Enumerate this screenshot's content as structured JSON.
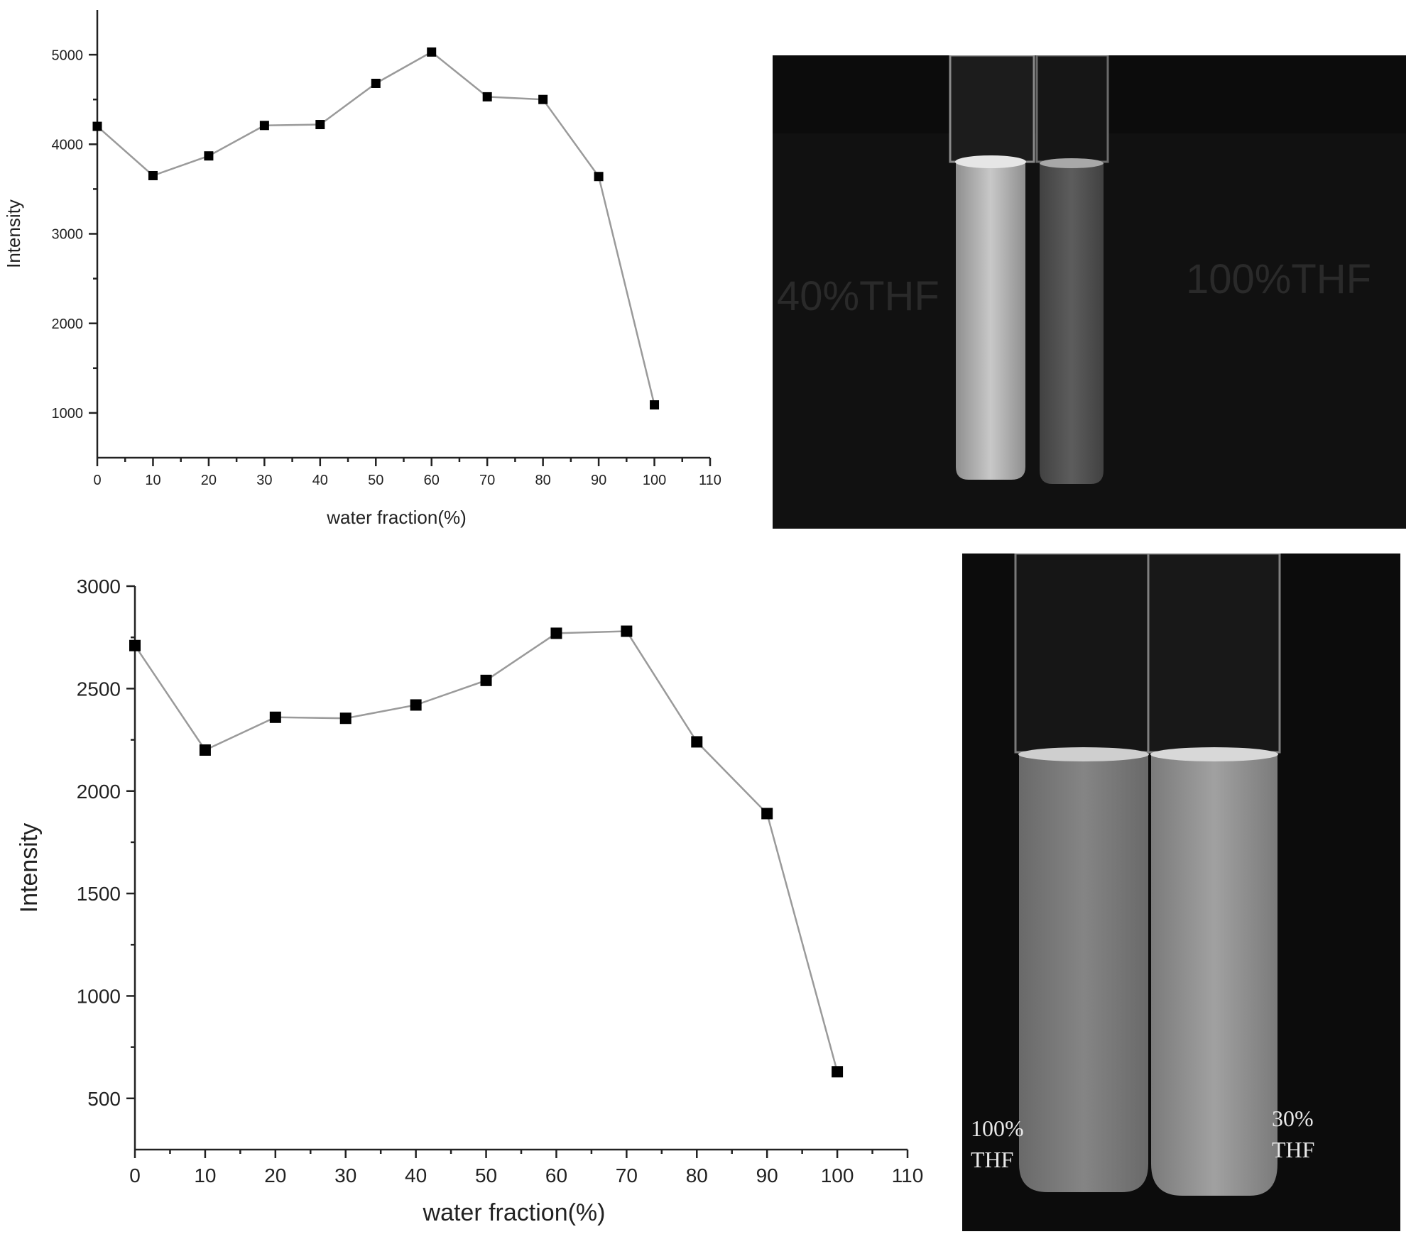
{
  "chart_data": [
    {
      "type": "line",
      "xlabel": "water fraction(%)",
      "ylabel": "Intensity",
      "xlim": [
        0,
        110
      ],
      "ylim": [
        500,
        5500
      ],
      "x_ticks": [
        0,
        10,
        20,
        30,
        40,
        50,
        60,
        70,
        80,
        90,
        100,
        110
      ],
      "y_ticks": [
        1000,
        2000,
        3000,
        4000,
        5000
      ],
      "grid": false,
      "series": [
        {
          "x": [
            0,
            10,
            20,
            30,
            40,
            50,
            60,
            70,
            80,
            90,
            100
          ],
          "values": [
            4200,
            3650,
            3870,
            4210,
            4220,
            4680,
            5030,
            4530,
            4500,
            3640,
            1090
          ]
        }
      ]
    },
    {
      "type": "line",
      "xlabel": "water fraction(%)",
      "ylabel": "Intensity",
      "xlim": [
        0,
        110
      ],
      "ylim": [
        250,
        3000
      ],
      "x_ticks": [
        0,
        10,
        20,
        30,
        40,
        50,
        60,
        70,
        80,
        90,
        100,
        110
      ],
      "y_ticks": [
        500,
        1000,
        1500,
        2000,
        2500,
        3000
      ],
      "grid": false,
      "series": [
        {
          "x": [
            0,
            10,
            20,
            30,
            40,
            50,
            60,
            70,
            80,
            90,
            100
          ],
          "values": [
            2710,
            2200,
            2360,
            2355,
            2420,
            2540,
            2770,
            2780,
            2240,
            1890,
            630
          ]
        }
      ]
    }
  ],
  "photos": [
    {
      "labels": {
        "left": "40%THF",
        "right": "100%THF"
      }
    },
    {
      "labels": {
        "left_line1": "100%",
        "left_line2": "THF",
        "right_line1": "30%",
        "right_line2": "THF"
      }
    }
  ]
}
